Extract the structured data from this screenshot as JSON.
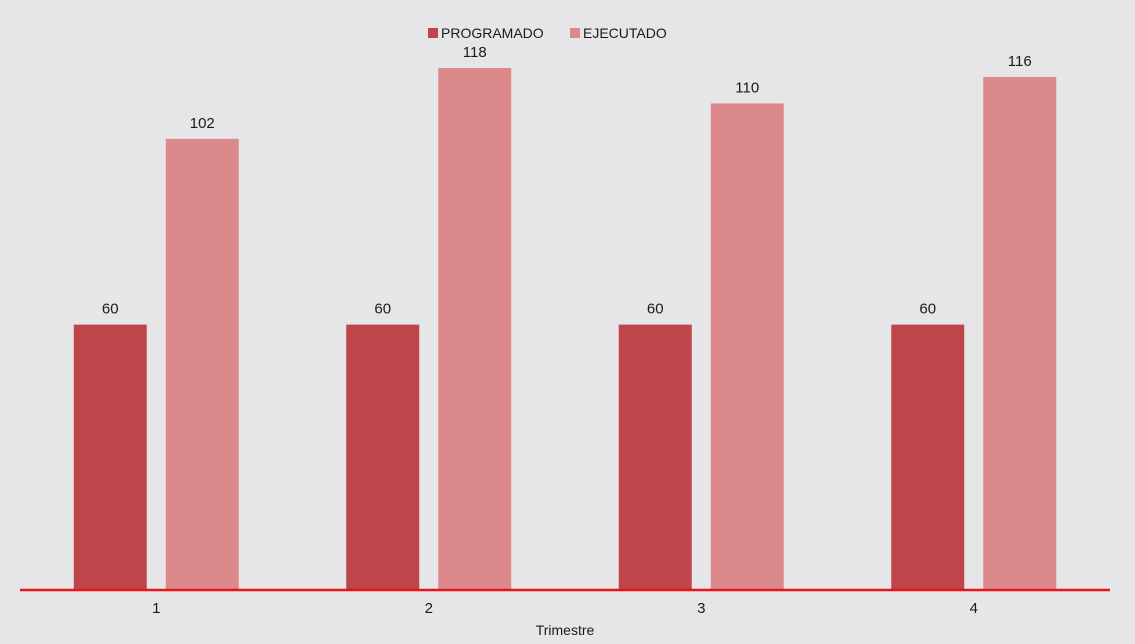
{
  "chart_data": {
    "type": "bar",
    "title": "",
    "xlabel": "Trimestre",
    "ylabel": "",
    "categories": [
      "1",
      "2",
      "3",
      "4"
    ],
    "series": [
      {
        "name": "PROGRAMADO",
        "values": [
          60,
          60,
          60,
          60
        ],
        "color": "#be454a"
      },
      {
        "name": "EJECUTADO",
        "values": [
          102,
          118,
          110,
          116
        ],
        "color": "#dc898c"
      }
    ],
    "ylim": [
      0,
      130
    ],
    "grid": false,
    "legend": "top-center",
    "axis_color": "#e8141c",
    "data_labels": true
  }
}
